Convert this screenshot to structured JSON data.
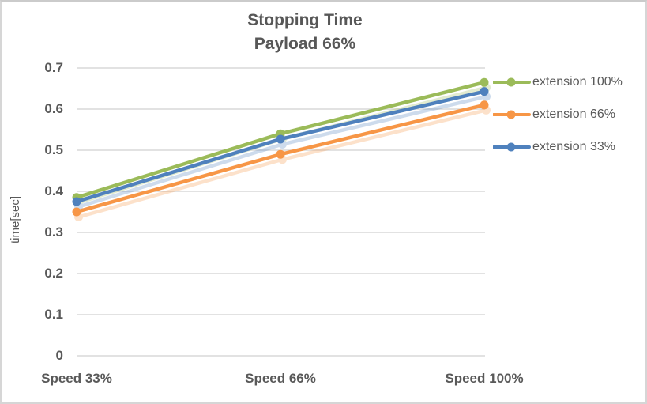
{
  "title": {
    "line1": "Stopping Time",
    "line2": "Payload 66%"
  },
  "y_axis": {
    "label": "time[sec]",
    "ticks": [
      "0.7",
      "0.6",
      "0.5",
      "0.4",
      "0.3",
      "0.2",
      "0.1",
      "0"
    ]
  },
  "chart_data": {
    "type": "line",
    "title": "Stopping Time — Payload 66%",
    "categories": [
      "Speed 33%",
      "Speed 66%",
      "Speed 100%"
    ],
    "series": [
      {
        "name": "extension 100%",
        "color": "#9BBB59",
        "values": [
          0.385,
          0.54,
          0.665
        ]
      },
      {
        "name": "extension 66%",
        "color": "#F79646",
        "values": [
          0.35,
          0.49,
          0.61
        ]
      },
      {
        "name": "extension 33%",
        "color": "#4F81BD",
        "values": [
          0.375,
          0.527,
          0.643
        ]
      }
    ],
    "xlabel": "",
    "ylabel": "time[sec]",
    "ylim": [
      0,
      0.7
    ],
    "ytick_step": 0.1,
    "grid": true,
    "legend_position": "right",
    "marker": "circle"
  },
  "colors": {
    "text": "#595959",
    "gridline": "#D9D9D9",
    "background": "#FFFFFF",
    "border": "#D0D0D0"
  }
}
